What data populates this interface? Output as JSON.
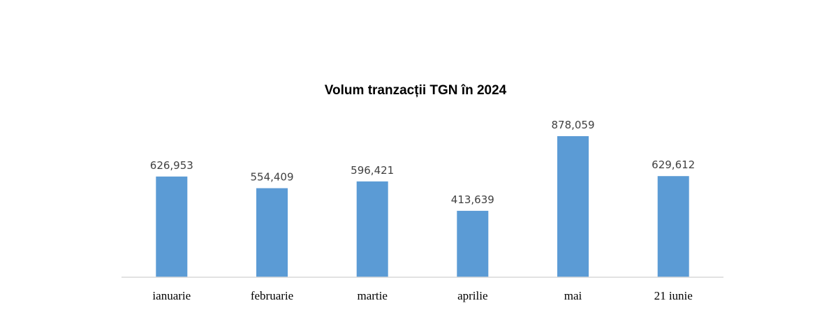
{
  "chart_data": {
    "type": "bar",
    "title": "Volum tranzacții TGN în 2024",
    "categories": [
      "ianuarie",
      "februarie",
      "martie",
      "aprilie",
      "mai",
      "21 iunie"
    ],
    "values": [
      626953,
      554409,
      596421,
      413639,
      878059,
      629612
    ],
    "data_labels": [
      "626,953",
      "554,409",
      "596,421",
      "413,639",
      "878,059",
      "629,612"
    ],
    "xlabel": "",
    "ylabel": "",
    "ylim": [
      0,
      1000000
    ],
    "grid": false,
    "legend": "none",
    "bar_color": "#5B9BD5",
    "axis_color": "#D9D9D9"
  }
}
